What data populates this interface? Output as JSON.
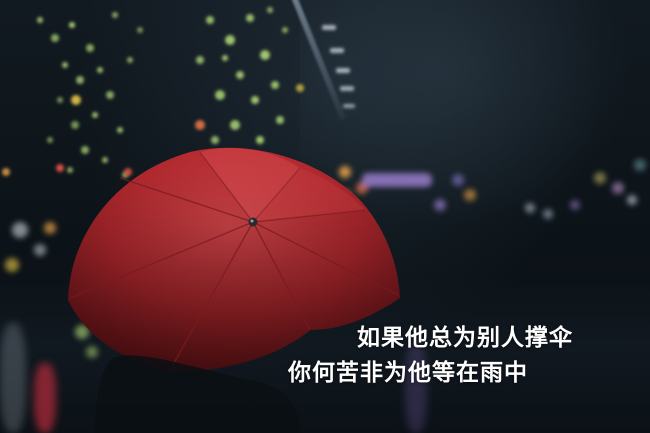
{
  "photo": {
    "subject": "red umbrella",
    "setting": "rainy night street with bokeh lights",
    "colors": {
      "umbrella": "#b3282e",
      "umbrella_highlight": "#d9484c",
      "umbrella_shadow": "#6e1419",
      "bokeh_green": "#b8e27a",
      "bokeh_warm": "#f2a64a",
      "bokeh_purple": "#a98ae0",
      "background": "#0d1217"
    }
  },
  "caption": {
    "line1": "如果他总为别人撑伞",
    "line2": "你何苦非为他等在雨中"
  }
}
